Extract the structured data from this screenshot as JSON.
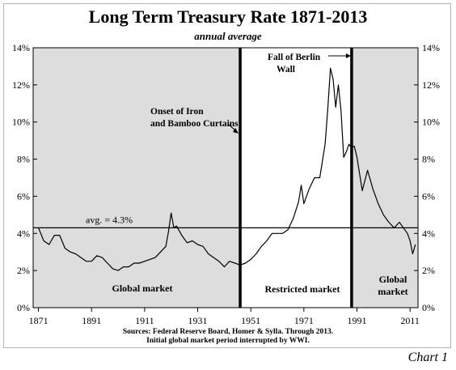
{
  "header": {
    "title": "Long Term Treasury Rate 1871-2013",
    "subtitle": "annual average"
  },
  "footer": {
    "sources": "Sources: Federal Reserve Board, Homer & Sylla. Through 2013.",
    "note": "Initial global market period interrupted by WWI.",
    "chart_label": "Chart 1"
  },
  "chart_data": {
    "type": "line",
    "title": "Long Term Treasury Rate 1871-2013",
    "subtitle": "annual average",
    "xlabel": "",
    "ylabel": "",
    "xlim": [
      1869,
      2014
    ],
    "ylim": [
      0,
      14
    ],
    "x_ticks": [
      1871,
      1891,
      1911,
      1931,
      1951,
      1971,
      1991,
      2011
    ],
    "y_ticks": [
      0,
      2,
      4,
      6,
      8,
      10,
      12,
      14
    ],
    "y_tick_labels": [
      "0%",
      "2%",
      "4%",
      "6%",
      "8%",
      "10%",
      "12%",
      "14%"
    ],
    "grid": false,
    "series": [
      {
        "name": "",
        "color": "#000000",
        "x": [
          1871,
          1873,
          1875,
          1877,
          1879,
          1881,
          1883,
          1885,
          1887,
          1889,
          1891,
          1893,
          1895,
          1897,
          1899,
          1901,
          1903,
          1905,
          1907,
          1909,
          1911,
          1913,
          1915,
          1917,
          1919,
          1920,
          1921,
          1922,
          1923,
          1925,
          1927,
          1929,
          1931,
          1933,
          1935,
          1937,
          1939,
          1941,
          1943,
          1945,
          1947,
          1949,
          1951,
          1953,
          1955,
          1957,
          1959,
          1961,
          1963,
          1965,
          1967,
          1969,
          1970,
          1971,
          1973,
          1975,
          1977,
          1979,
          1980,
          1981,
          1982,
          1983,
          1984,
          1985,
          1986,
          1987,
          1988,
          1989,
          1990,
          1991,
          1993,
          1995,
          1997,
          1999,
          2001,
          2003,
          2005,
          2007,
          2009,
          2010,
          2011,
          2012,
          2013
        ],
        "y": [
          4.3,
          3.6,
          3.4,
          3.9,
          3.9,
          3.2,
          3.0,
          2.9,
          2.7,
          2.5,
          2.5,
          2.8,
          2.7,
          2.4,
          2.1,
          2.0,
          2.2,
          2.2,
          2.4,
          2.4,
          2.5,
          2.6,
          2.7,
          3.0,
          3.3,
          4.1,
          5.1,
          4.3,
          4.4,
          3.9,
          3.5,
          3.6,
          3.4,
          3.3,
          2.9,
          2.7,
          2.5,
          2.2,
          2.5,
          2.4,
          2.3,
          2.4,
          2.6,
          2.9,
          3.3,
          3.6,
          4.0,
          4.0,
          4.0,
          4.2,
          4.8,
          5.7,
          6.6,
          5.6,
          6.4,
          7.0,
          7.0,
          8.8,
          10.7,
          12.9,
          12.3,
          10.8,
          12.0,
          10.6,
          8.1,
          8.4,
          8.8,
          8.6,
          8.7,
          8.1,
          6.3,
          7.4,
          6.4,
          5.6,
          5.0,
          4.6,
          4.3,
          4.6,
          4.2,
          4.0,
          3.6,
          2.9,
          3.4
        ]
      }
    ],
    "reference_line": {
      "label": "avg. = 4.3%",
      "value": 4.3
    },
    "markers": [
      {
        "x": 1947,
        "label": "Onset of Iron and Bamboo Curtains"
      },
      {
        "x": 1989,
        "label": "Fall of Berlin Wall"
      }
    ],
    "regions": [
      {
        "from": 1869,
        "to": 1947,
        "label": "Global market",
        "shaded": true,
        "fill": "#dddddd"
      },
      {
        "from": 1947,
        "to": 1989,
        "label": "Restricted market",
        "shaded": false,
        "fill": "#ffffff"
      },
      {
        "from": 1989,
        "to": 2014,
        "label": "Global market",
        "shaded": true,
        "fill": "#dddddd"
      }
    ]
  }
}
